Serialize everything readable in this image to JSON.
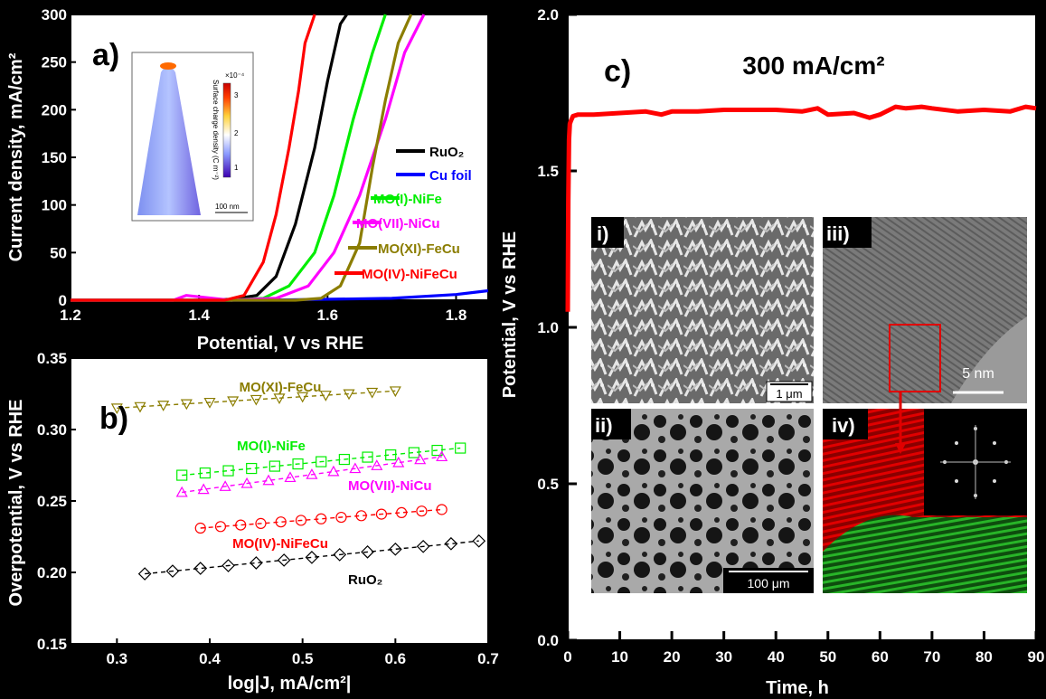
{
  "chart_data": [
    {
      "panel": "a)",
      "type": "line",
      "xlabel": "Potential,  V vs RHE",
      "ylabel": "Current density, mA/cm²",
      "xlim": [
        1.2,
        1.85
      ],
      "ylim": [
        0,
        300
      ],
      "xticks": [
        "1.2",
        "1.4",
        "1.6",
        "1.8"
      ],
      "yticks": [
        "0",
        "50",
        "100",
        "150",
        "200",
        "250",
        "300"
      ],
      "legend_position": "right",
      "series": [
        {
          "name": "RuO₂",
          "color": "#000000",
          "x": [
            1.2,
            1.4,
            1.45,
            1.49,
            1.52,
            1.55,
            1.58,
            1.6,
            1.62,
            1.63
          ],
          "y": [
            0,
            0,
            1,
            5,
            25,
            80,
            160,
            230,
            290,
            300
          ]
        },
        {
          "name": "Cu foil",
          "color": "#0000ff",
          "x": [
            1.2,
            1.5,
            1.7,
            1.8,
            1.85
          ],
          "y": [
            0,
            0,
            2,
            6,
            10
          ]
        },
        {
          "name": "MO(I)-NiFe",
          "color": "#00ee00",
          "x": [
            1.2,
            1.45,
            1.5,
            1.54,
            1.58,
            1.61,
            1.64,
            1.67,
            1.69
          ],
          "y": [
            0,
            0,
            2,
            15,
            50,
            110,
            190,
            260,
            300
          ]
        },
        {
          "name": "MO(VII)-NiCu",
          "color": "#ff00ff",
          "x": [
            1.2,
            1.36,
            1.38,
            1.45,
            1.52,
            1.57,
            1.61,
            1.65,
            1.69,
            1.72,
            1.75
          ],
          "y": [
            0,
            0,
            5,
            0,
            2,
            15,
            50,
            110,
            190,
            260,
            300
          ]
        },
        {
          "name": "MO(XI)-FeCu",
          "color": "#8b7d00",
          "x": [
            1.2,
            1.55,
            1.59,
            1.62,
            1.65,
            1.67,
            1.69,
            1.71,
            1.73
          ],
          "y": [
            0,
            0,
            2,
            15,
            60,
            140,
            210,
            270,
            300
          ]
        },
        {
          "name": "MO(IV)-NiFeCu",
          "color": "#ff0000",
          "x": [
            1.2,
            1.44,
            1.47,
            1.5,
            1.52,
            1.54,
            1.555,
            1.565,
            1.58
          ],
          "y": [
            0,
            0,
            5,
            40,
            90,
            160,
            220,
            270,
            300
          ]
        }
      ],
      "inset": {
        "colorbar_title": "Surface charge density (C m⁻²)",
        "colorbar_multiplier": "×10⁻⁴",
        "colorbar_ticks": [
          "3",
          "2",
          "1"
        ],
        "scale_bar": "100 nm"
      }
    },
    {
      "panel": "b)",
      "type": "scatter",
      "xlabel": "log|J, mA/cm²|",
      "ylabel": "Overpotential, V vs RHE",
      "xlim": [
        0.25,
        0.7
      ],
      "ylim": [
        0.15,
        0.35
      ],
      "xticks": [
        "0.3",
        "0.4",
        "0.5",
        "0.6",
        "0.7"
      ],
      "yticks": [
        "0.15",
        "0.20",
        "0.25",
        "0.30",
        "0.35"
      ],
      "series": [
        {
          "name": "MO(XI)-FeCu",
          "color": "#8b7d00",
          "marker": "triangle-down",
          "x_start": 0.3,
          "x_end": 0.6,
          "y_start": 0.315,
          "y_end": 0.327
        },
        {
          "name": "MO(I)-NiFe",
          "color": "#00ee00",
          "marker": "square",
          "x_start": 0.37,
          "x_end": 0.67,
          "y_start": 0.268,
          "y_end": 0.287
        },
        {
          "name": "MO(VII)-NiCu",
          "color": "#ff00ff",
          "marker": "triangle-up",
          "x_start": 0.37,
          "x_end": 0.65,
          "y_start": 0.256,
          "y_end": 0.281
        },
        {
          "name": "MO(IV)-NiFeCu",
          "color": "#ff0000",
          "marker": "circle",
          "x_start": 0.39,
          "x_end": 0.65,
          "y_start": 0.231,
          "y_end": 0.244
        },
        {
          "name": "RuO₂",
          "color": "#000000",
          "marker": "diamond",
          "x_start": 0.33,
          "x_end": 0.69,
          "y_start": 0.199,
          "y_end": 0.222
        }
      ]
    },
    {
      "panel": "c)",
      "type": "line",
      "title": "300 mA/cm²",
      "xlabel": "Time, h",
      "ylabel": "Potential, V vs RHE",
      "xlim": [
        0,
        90
      ],
      "ylim": [
        0.0,
        2.0
      ],
      "xticks": [
        "0",
        "10",
        "20",
        "30",
        "40",
        "50",
        "60",
        "70",
        "80",
        "90"
      ],
      "yticks": [
        "0.0",
        "0.5",
        "1.0",
        "1.5",
        "2.0"
      ],
      "series": [
        {
          "color": "#ff0000",
          "x": [
            0,
            0.1,
            0.25,
            0.4,
            0.6,
            1,
            2,
            5,
            10,
            15,
            18,
            20,
            25,
            30,
            35,
            40,
            45,
            48,
            50,
            55,
            58,
            60,
            63,
            65,
            68,
            70,
            75,
            80,
            85,
            88,
            90
          ],
          "y": [
            1.05,
            1.4,
            1.6,
            1.65,
            1.66,
            1.675,
            1.68,
            1.68,
            1.685,
            1.69,
            1.68,
            1.69,
            1.69,
            1.695,
            1.695,
            1.695,
            1.69,
            1.7,
            1.68,
            1.685,
            1.67,
            1.68,
            1.705,
            1.7,
            1.705,
            1.7,
            1.69,
            1.695,
            1.69,
            1.705,
            1.7
          ]
        }
      ],
      "micrographs": [
        {
          "label": "i)",
          "scale_bar": "1 μm"
        },
        {
          "label": "ii)",
          "scale_bar": "100 μm"
        },
        {
          "label": "iii)",
          "scale_bar": "5 nm"
        },
        {
          "label": "iv)"
        }
      ]
    }
  ]
}
